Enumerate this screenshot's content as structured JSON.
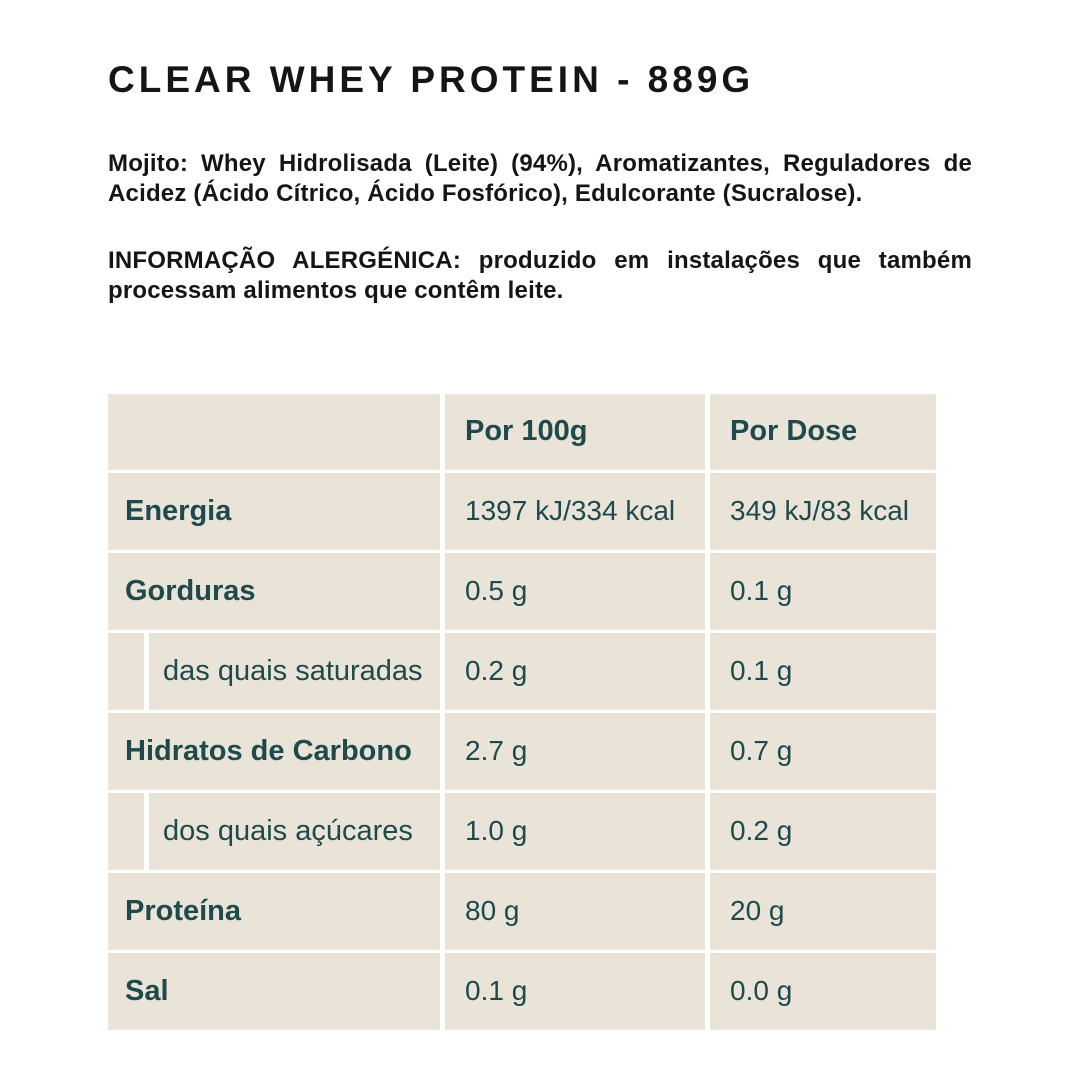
{
  "page": {
    "title": "CLEAR WHEY PROTEIN - 889G",
    "ingredients": "Mojito: Whey Hidrolisada (Leite) (94%), Aromatizantes, Reguladores de Acidez (Ácido Cítrico, Ácido Fosfórico), Edulcorante (Sucralose).",
    "allergen": "INFORMAÇÃO ALERGÉNICA: produzido em instalações que também processam alimentos que contêm leite."
  },
  "colors": {
    "page_background": "#ffffff",
    "body_text": "#151515",
    "table_cell_background": "#e9e3d8",
    "table_text": "#1e4a4e",
    "divider": "#ffffff"
  },
  "nutrition_table": {
    "columns": [
      "",
      "Por 100g",
      "Por Dose"
    ],
    "rows": [
      {
        "label": "Energia",
        "indent": false,
        "per100g": "1397 kJ/334 kcal",
        "perDose": "349 kJ/83 kcal"
      },
      {
        "label": "Gorduras",
        "indent": false,
        "per100g": "0.5 g",
        "perDose": "0.1 g"
      },
      {
        "label": "das quais saturadas",
        "indent": true,
        "per100g": "0.2 g",
        "perDose": "0.1 g"
      },
      {
        "label": "Hidratos de Carbono",
        "indent": false,
        "per100g": "2.7 g",
        "perDose": "0.7 g"
      },
      {
        "label": "dos quais açúcares",
        "indent": true,
        "per100g": "1.0 g",
        "perDose": "0.2 g"
      },
      {
        "label": "Proteína",
        "indent": false,
        "per100g": "80 g",
        "perDose": "20 g"
      },
      {
        "label": "Sal",
        "indent": false,
        "per100g": "0.1 g",
        "perDose": "0.0 g"
      }
    ]
  }
}
